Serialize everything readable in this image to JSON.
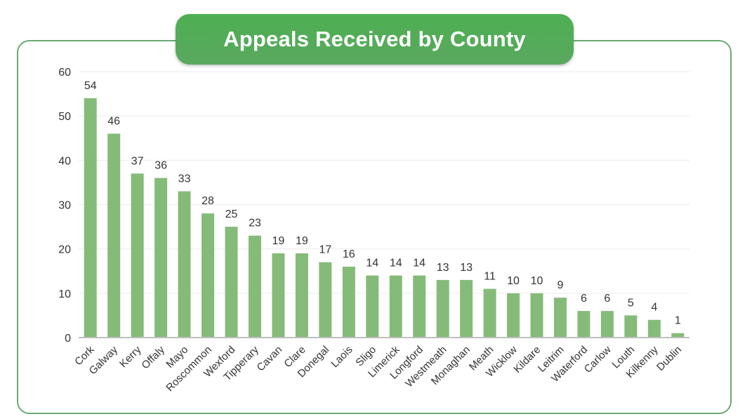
{
  "chart_data": {
    "type": "bar",
    "title": "Appeals Received by County",
    "xlabel": "",
    "ylabel": "",
    "ylim": [
      0,
      60
    ],
    "yticks": [
      0,
      10,
      20,
      30,
      40,
      50,
      60
    ],
    "grid": true,
    "bar_color": "#85bb78",
    "categories": [
      "Cork",
      "Galway",
      "Kerry",
      "Offaly",
      "Mayo",
      "Roscommon",
      "Wexford",
      "Tipperary",
      "Cavan",
      "Clare",
      "Donegal",
      "Laois",
      "Sligo",
      "Limerick",
      "Longford",
      "Westmeath",
      "Monaghan",
      "Meath",
      "Wicklow",
      "Kildare",
      "Leitrim",
      "Waterford",
      "Carlow",
      "Louth",
      "Kilkenny",
      "Dublin"
    ],
    "values": [
      54,
      46,
      37,
      36,
      33,
      28,
      25,
      23,
      19,
      19,
      17,
      16,
      14,
      14,
      14,
      13,
      13,
      11,
      10,
      10,
      9,
      6,
      6,
      5,
      4,
      1
    ]
  },
  "colors": {
    "accent": "#4daf52",
    "border": "#6aaa73"
  }
}
